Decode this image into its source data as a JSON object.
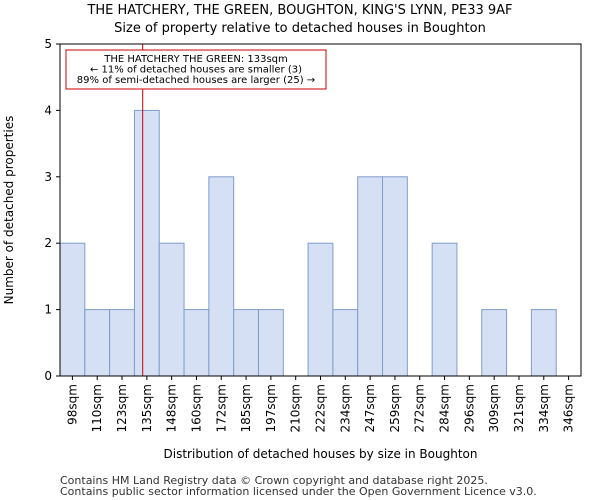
{
  "chart_data": {
    "type": "bar",
    "title": "THE HATCHERY, THE GREEN, BOUGHTON, KING'S LYNN, PE33 9AF",
    "subtitle": "Size of property relative to detached houses in Boughton",
    "xlabel": "Distribution of detached houses by size in Boughton",
    "ylabel": "Number of detached properties",
    "categories": [
      "98sqm",
      "110sqm",
      "123sqm",
      "135sqm",
      "148sqm",
      "160sqm",
      "172sqm",
      "185sqm",
      "197sqm",
      "210sqm",
      "222sqm",
      "234sqm",
      "247sqm",
      "259sqm",
      "272sqm",
      "284sqm",
      "296sqm",
      "309sqm",
      "321sqm",
      "334sqm",
      "346sqm"
    ],
    "values": [
      2,
      1,
      1,
      4,
      2,
      1,
      3,
      1,
      1,
      0,
      2,
      1,
      3,
      3,
      0,
      2,
      0,
      1,
      0,
      1,
      0
    ],
    "ylim": [
      0,
      5
    ],
    "yticks": [
      0,
      1,
      2,
      3,
      4,
      5
    ],
    "grid": false,
    "bar_color": "#d6e0f5",
    "bar_edge_color": "#7f9ccb",
    "marker": {
      "value": 133,
      "color": "#cc0000",
      "label_lines": [
        "THE HATCHERY THE GREEN: 133sqm",
        "← 11% of detached houses are smaller (3)",
        "89% of semi-detached houses are larger (25) →"
      ]
    }
  },
  "footer": {
    "line1": "Contains HM Land Registry data © Crown copyright and database right 2025.",
    "line2": "Contains public sector information licensed under the Open Government Licence v3.0."
  }
}
